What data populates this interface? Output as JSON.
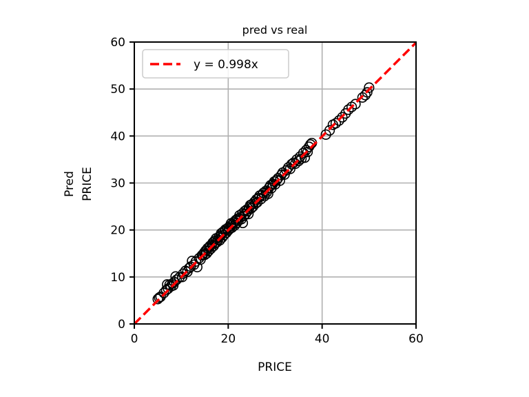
{
  "chart_data": {
    "type": "scatter",
    "title": "pred vs real",
    "xlabel": "PRICE",
    "ylabel_lines": [
      "Pred",
      "PRICE"
    ],
    "xlim": [
      0,
      60
    ],
    "ylim": [
      0,
      60
    ],
    "xticks": [
      "0",
      "20",
      "40",
      "60"
    ],
    "yticks": [
      "0",
      "10",
      "20",
      "30",
      "40",
      "50",
      "60"
    ],
    "grid": true,
    "legend": {
      "position": "top-left",
      "label": "y = 0.998x"
    },
    "fit_line": {
      "slope": 0.998,
      "color": "#ff0000",
      "style": "dashed"
    },
    "marker": {
      "stroke": "#000000",
      "fill": "none"
    },
    "points": [
      [
        5.0,
        5.3
      ],
      [
        5.3,
        5.6
      ],
      [
        5.6,
        5.8
      ],
      [
        6.3,
        6.6
      ],
      [
        6.8,
        7.2
      ],
      [
        7.0,
        8.4
      ],
      [
        7.2,
        7.5
      ],
      [
        7.5,
        8.3
      ],
      [
        7.8,
        8.0
      ],
      [
        8.1,
        8.6
      ],
      [
        8.3,
        8.2
      ],
      [
        8.5,
        8.9
      ],
      [
        8.8,
        10.1
      ],
      [
        9.0,
        9.4
      ],
      [
        9.6,
        9.9
      ],
      [
        10.2,
        10.0
      ],
      [
        10.4,
        10.7
      ],
      [
        10.9,
        11.3
      ],
      [
        11.3,
        11.1
      ],
      [
        11.7,
        11.9
      ],
      [
        12.0,
        12.2
      ],
      [
        12.3,
        13.4
      ],
      [
        12.7,
        12.6
      ],
      [
        13.1,
        13.3
      ],
      [
        13.4,
        12.1
      ],
      [
        13.8,
        14.0
      ],
      [
        14.1,
        13.7
      ],
      [
        14.4,
        14.6
      ],
      [
        14.6,
        14.8
      ],
      [
        14.9,
        15.2
      ],
      [
        15.0,
        14.7
      ],
      [
        15.2,
        15.6
      ],
      [
        15.4,
        15.0
      ],
      [
        15.6,
        16.1
      ],
      [
        15.8,
        15.5
      ],
      [
        16.0,
        16.3
      ],
      [
        16.1,
        16.6
      ],
      [
        16.3,
        16.0
      ],
      [
        16.5,
        16.9
      ],
      [
        16.7,
        17.3
      ],
      [
        16.9,
        16.6
      ],
      [
        17.0,
        17.6
      ],
      [
        17.2,
        17.1
      ],
      [
        17.4,
        18.2
      ],
      [
        17.6,
        17.4
      ],
      [
        17.8,
        17.9
      ],
      [
        18.0,
        18.5
      ],
      [
        18.2,
        17.8
      ],
      [
        18.4,
        18.8
      ],
      [
        18.5,
        19.3
      ],
      [
        18.7,
        18.4
      ],
      [
        18.9,
        19.6
      ],
      [
        19.1,
        18.9
      ],
      [
        19.3,
        19.8
      ],
      [
        19.4,
        20.1
      ],
      [
        19.6,
        19.4
      ],
      [
        19.8,
        20.3
      ],
      [
        20.0,
        19.9
      ],
      [
        20.1,
        20.6
      ],
      [
        20.3,
        20.2
      ],
      [
        20.5,
        20.9
      ],
      [
        20.6,
        21.4
      ],
      [
        20.8,
        20.5
      ],
      [
        21.0,
        21.2
      ],
      [
        21.2,
        21.7
      ],
      [
        21.4,
        21.0
      ],
      [
        21.6,
        22.1
      ],
      [
        21.8,
        21.5
      ],
      [
        22.0,
        22.4
      ],
      [
        22.2,
        22.0
      ],
      [
        22.4,
        23.1
      ],
      [
        22.6,
        22.7
      ],
      [
        22.8,
        22.3
      ],
      [
        23.0,
        23.5
      ],
      [
        23.1,
        21.5
      ],
      [
        23.3,
        23.0
      ],
      [
        23.5,
        24.0
      ],
      [
        23.7,
        23.4
      ],
      [
        23.9,
        24.3
      ],
      [
        24.1,
        24.0
      ],
      [
        24.3,
        23.4
      ],
      [
        24.5,
        24.8
      ],
      [
        24.7,
        25.3
      ],
      [
        24.9,
        24.6
      ],
      [
        25.1,
        25.5
      ],
      [
        25.3,
        25.0
      ],
      [
        25.6,
        26.0
      ],
      [
        25.8,
        25.6
      ],
      [
        26.0,
        26.5
      ],
      [
        26.2,
        25.9
      ],
      [
        26.4,
        26.8
      ],
      [
        26.7,
        27.3
      ],
      [
        27.0,
        26.6
      ],
      [
        27.2,
        27.4
      ],
      [
        27.5,
        27.9
      ],
      [
        27.7,
        27.2
      ],
      [
        28.0,
        28.3
      ],
      [
        28.2,
        28.0
      ],
      [
        28.5,
        27.7
      ],
      [
        28.7,
        29.0
      ],
      [
        29.0,
        29.5
      ],
      [
        29.2,
        28.9
      ],
      [
        29.5,
        29.8
      ],
      [
        29.8,
        30.3
      ],
      [
        30.0,
        29.7
      ],
      [
        30.3,
        30.6
      ],
      [
        30.6,
        31.0
      ],
      [
        31.0,
        30.5
      ],
      [
        31.3,
        31.7
      ],
      [
        31.6,
        32.2
      ],
      [
        32.0,
        31.8
      ],
      [
        32.4,
        32.7
      ],
      [
        32.8,
        33.3
      ],
      [
        33.2,
        33.0
      ],
      [
        33.5,
        34.0
      ],
      [
        33.9,
        34.3
      ],
      [
        34.3,
        34.1
      ],
      [
        34.6,
        35.0
      ],
      [
        35.0,
        34.7
      ],
      [
        35.3,
        35.6
      ],
      [
        35.6,
        35.2
      ],
      [
        36.0,
        36.4
      ],
      [
        36.3,
        35.4
      ],
      [
        36.6,
        37.0
      ],
      [
        36.9,
        36.6
      ],
      [
        37.2,
        37.7
      ],
      [
        37.5,
        38.2
      ],
      [
        37.8,
        38.5
      ],
      [
        40.8,
        40.3
      ],
      [
        41.6,
        41.2
      ],
      [
        42.3,
        42.4
      ],
      [
        42.9,
        42.7
      ],
      [
        43.6,
        43.3
      ],
      [
        44.3,
        44.0
      ],
      [
        45.0,
        44.8
      ],
      [
        45.6,
        45.6
      ],
      [
        46.3,
        46.2
      ],
      [
        47.1,
        46.8
      ],
      [
        48.6,
        48.2
      ],
      [
        49.2,
        48.7
      ],
      [
        49.6,
        49.3
      ],
      [
        50.0,
        50.3
      ]
    ]
  }
}
